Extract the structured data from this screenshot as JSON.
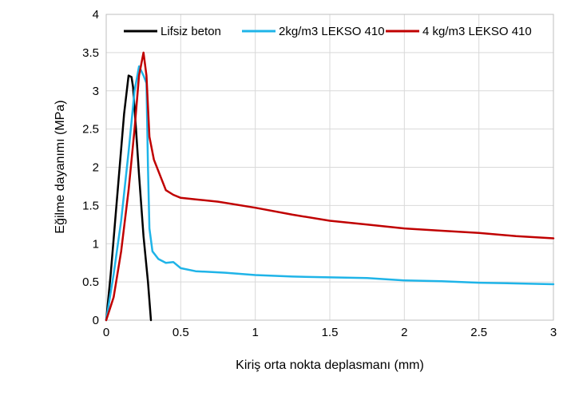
{
  "chart_data": {
    "type": "line",
    "title": "",
    "xlabel": "Kiriş orta nokta deplasmanı (mm)",
    "ylabel": "Eğilme dayanımı (MPa)",
    "xlim": [
      0,
      3
    ],
    "ylim": [
      0,
      4
    ],
    "x_ticks": [
      "0",
      "0.5",
      "1",
      "1.5",
      "2",
      "2.5",
      "3"
    ],
    "y_ticks": [
      "0",
      "0.5",
      "1",
      "1.5",
      "2",
      "2.5",
      "3",
      "3.5",
      "4"
    ],
    "grid": true,
    "legend_position": "top",
    "series": [
      {
        "name": "Lifsiz beton",
        "color": "#000000",
        "points": [
          [
            0,
            0
          ],
          [
            0.03,
            0.6
          ],
          [
            0.06,
            1.3
          ],
          [
            0.09,
            2.0
          ],
          [
            0.12,
            2.7
          ],
          [
            0.15,
            3.2
          ],
          [
            0.17,
            3.18
          ],
          [
            0.18,
            3.05
          ],
          [
            0.2,
            2.5
          ],
          [
            0.22,
            1.9
          ],
          [
            0.25,
            1.1
          ],
          [
            0.28,
            0.5
          ],
          [
            0.3,
            0.0
          ]
        ]
      },
      {
        "name": "2kg/m3 LEKSO 410",
        "color": "#1fb4e8",
        "points": [
          [
            0,
            0
          ],
          [
            0.05,
            0.6
          ],
          [
            0.1,
            1.3
          ],
          [
            0.15,
            2.2
          ],
          [
            0.19,
            3.0
          ],
          [
            0.22,
            3.32
          ],
          [
            0.25,
            3.2
          ],
          [
            0.27,
            3.1
          ],
          [
            0.28,
            2.0
          ],
          [
            0.29,
            1.2
          ],
          [
            0.31,
            0.9
          ],
          [
            0.35,
            0.8
          ],
          [
            0.4,
            0.75
          ],
          [
            0.45,
            0.76
          ],
          [
            0.5,
            0.68
          ],
          [
            0.6,
            0.64
          ],
          [
            0.8,
            0.62
          ],
          [
            1.0,
            0.59
          ],
          [
            1.25,
            0.57
          ],
          [
            1.5,
            0.56
          ],
          [
            1.75,
            0.55
          ],
          [
            2.0,
            0.52
          ],
          [
            2.25,
            0.51
          ],
          [
            2.5,
            0.49
          ],
          [
            2.75,
            0.48
          ],
          [
            3.0,
            0.47
          ]
        ]
      },
      {
        "name": "4 kg/m3 LEKSO 410",
        "color": "#c00000",
        "points": [
          [
            0,
            0
          ],
          [
            0.05,
            0.3
          ],
          [
            0.1,
            0.9
          ],
          [
            0.15,
            1.7
          ],
          [
            0.19,
            2.5
          ],
          [
            0.22,
            3.2
          ],
          [
            0.25,
            3.5
          ],
          [
            0.27,
            3.2
          ],
          [
            0.29,
            2.4
          ],
          [
            0.32,
            2.1
          ],
          [
            0.36,
            1.9
          ],
          [
            0.4,
            1.7
          ],
          [
            0.45,
            1.64
          ],
          [
            0.5,
            1.6
          ],
          [
            0.6,
            1.58
          ],
          [
            0.75,
            1.55
          ],
          [
            1.0,
            1.47
          ],
          [
            1.25,
            1.38
          ],
          [
            1.5,
            1.3
          ],
          [
            1.75,
            1.25
          ],
          [
            2.0,
            1.2
          ],
          [
            2.25,
            1.17
          ],
          [
            2.5,
            1.14
          ],
          [
            2.75,
            1.1
          ],
          [
            3.0,
            1.07
          ]
        ]
      }
    ]
  }
}
